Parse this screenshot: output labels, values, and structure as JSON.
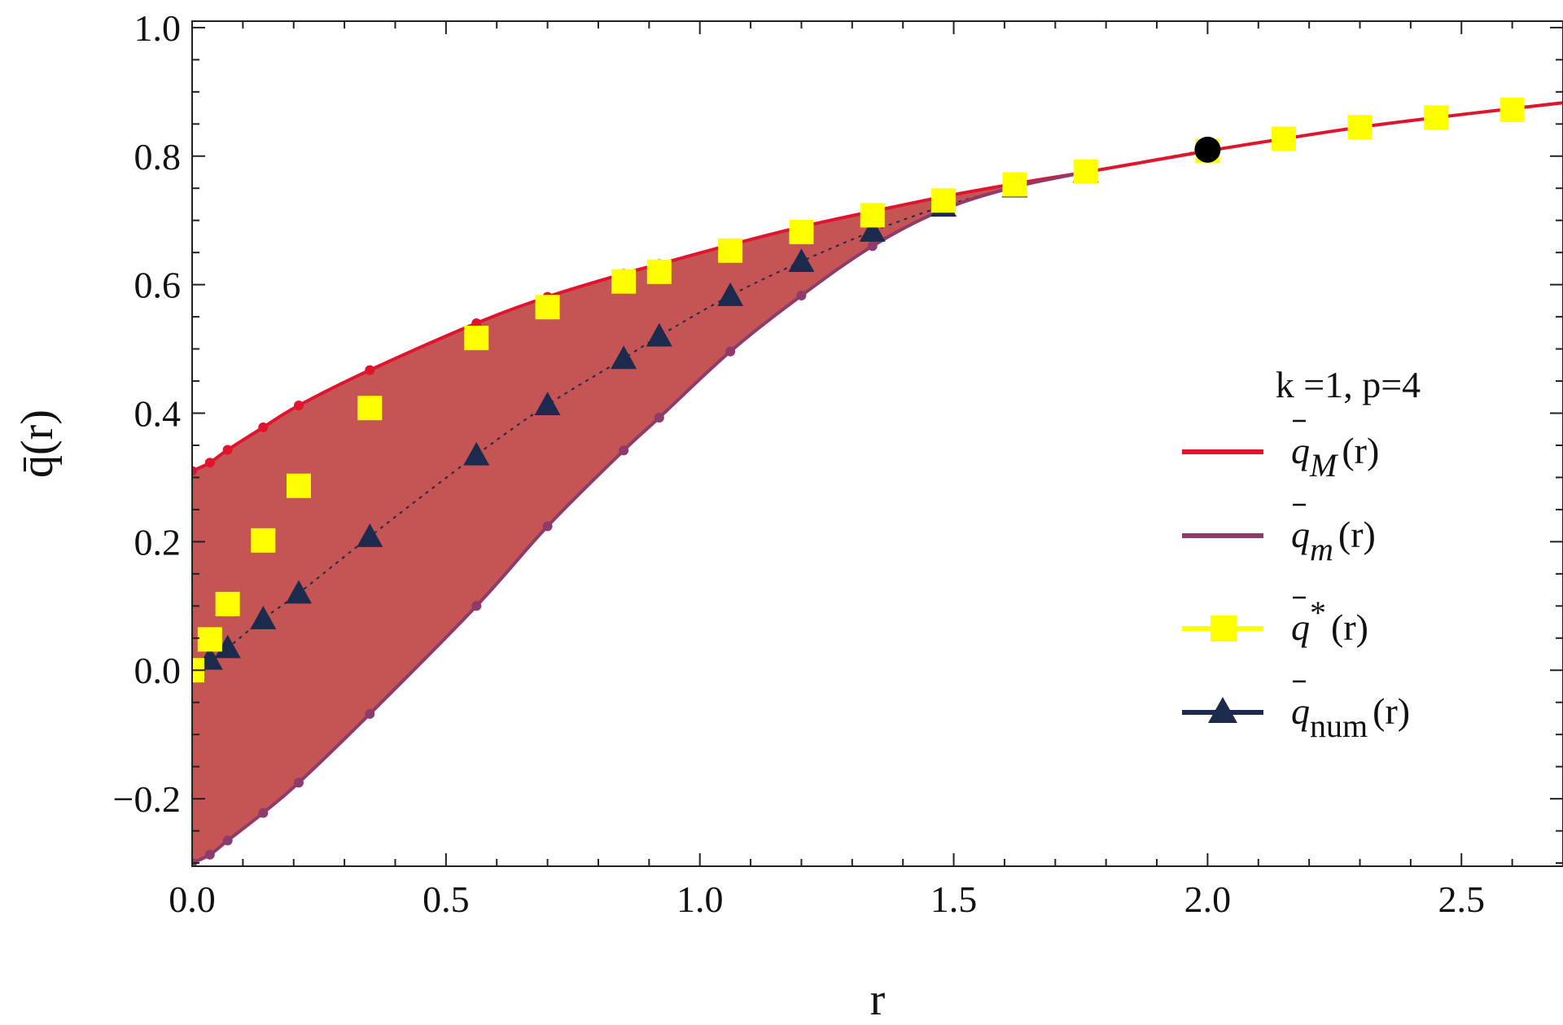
{
  "chart_data": {
    "type": "line",
    "xlabel": "r",
    "ylabel": "q̄(r)",
    "xlim": [
      0,
      2.7
    ],
    "ylim": [
      -0.305,
      1.01
    ],
    "x_ticks": [
      0.0,
      0.5,
      1.0,
      1.5,
      2.0,
      2.5
    ],
    "x_tick_labels": [
      "0.0",
      "0.5",
      "1.0",
      "1.5",
      "2.0",
      "2.5"
    ],
    "y_ticks": [
      -0.2,
      0.0,
      0.2,
      0.4,
      0.6,
      0.8,
      1.0
    ],
    "y_tick_labels": [
      "−0.2",
      "0.0",
      "0.2",
      "0.4",
      "0.6",
      "0.8",
      "1.0"
    ],
    "legend": {
      "title": "k =1, p=4",
      "placement": "right",
      "entries": [
        {
          "base": "q",
          "sub": "M",
          "sup": "",
          "tail": "(r)"
        },
        {
          "base": "q",
          "sub": "m",
          "sup": "",
          "tail": "(r)"
        },
        {
          "base": "q",
          "sub": "",
          "sup": "*",
          "tail": "(r)"
        },
        {
          "base": "q",
          "sub": "num",
          "sup": "",
          "tail": "(r)"
        }
      ]
    },
    "colors": {
      "q_M": "#e0142c",
      "q_m": "#8e3a6b",
      "q_star": "#ffff00",
      "q_num": "#1c2a4d",
      "fill": "#c55454",
      "special_point": "#000000"
    },
    "series": [
      {
        "key": "q_M",
        "type": "line",
        "x": [
          0.0,
          0.035,
          0.07,
          0.14,
          0.21,
          0.35,
          0.56,
          0.7,
          0.85,
          0.92,
          1.06,
          1.2,
          1.34,
          1.48,
          1.62,
          1.76,
          2.0,
          2.15,
          2.3,
          2.45,
          2.6,
          2.7
        ],
        "y": [
          0.31,
          0.323,
          0.343,
          0.378,
          0.412,
          0.467,
          0.54,
          0.581,
          0.617,
          0.632,
          0.662,
          0.69,
          0.714,
          0.737,
          0.757,
          0.775,
          0.808,
          0.827,
          0.845,
          0.86,
          0.874,
          0.883
        ]
      },
      {
        "key": "q_m",
        "type": "line",
        "x": [
          0.0,
          0.035,
          0.07,
          0.14,
          0.21,
          0.35,
          0.56,
          0.7,
          0.85,
          0.92,
          1.06,
          1.2,
          1.34,
          1.48,
          1.62,
          1.76
        ],
        "y": [
          -0.3,
          -0.287,
          -0.265,
          -0.222,
          -0.175,
          -0.068,
          0.1,
          0.224,
          0.342,
          0.393,
          0.496,
          0.583,
          0.66,
          0.717,
          0.752,
          0.775
        ]
      },
      {
        "key": "q_star",
        "type": "scatter",
        "x": [
          0.0,
          0.035,
          0.07,
          0.14,
          0.21,
          0.35,
          0.56,
          0.7,
          0.85,
          0.92,
          1.06,
          1.2,
          1.34,
          1.48,
          1.62,
          1.76,
          2.0,
          2.15,
          2.3,
          2.45,
          2.6
        ],
        "y": [
          0.0,
          0.048,
          0.103,
          0.202,
          0.287,
          0.408,
          0.517,
          0.565,
          0.605,
          0.62,
          0.653,
          0.682,
          0.708,
          0.731,
          0.756,
          0.776,
          0.808,
          0.827,
          0.845,
          0.86,
          0.872
        ]
      },
      {
        "key": "q_num",
        "type": "scatter",
        "x": [
          0.0,
          0.035,
          0.07,
          0.14,
          0.21,
          0.35,
          0.56,
          0.7,
          0.85,
          0.92,
          1.06,
          1.2,
          1.34,
          1.48,
          1.62,
          1.76
        ],
        "y": [
          0.0,
          0.017,
          0.035,
          0.08,
          0.12,
          0.208,
          0.335,
          0.413,
          0.485,
          0.52,
          0.583,
          0.636,
          0.683,
          0.722,
          0.752,
          0.775
        ]
      }
    ],
    "special_point": {
      "x": 2.0,
      "y": 0.81
    }
  }
}
